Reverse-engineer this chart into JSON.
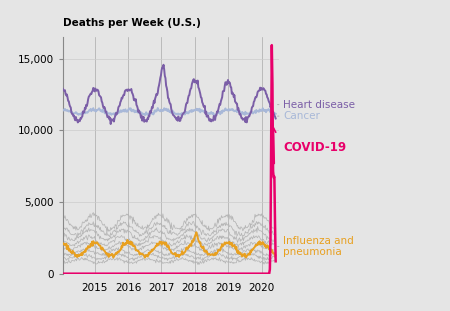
{
  "title": "Deaths per Week (U.S.)",
  "background_color": "#e5e5e5",
  "plot_bg_color": "#e5e5e5",
  "xlim": [
    2014.05,
    2020.52
  ],
  "ylim": [
    0,
    16500
  ],
  "yticks": [
    0,
    5000,
    10000,
    15000
  ],
  "xtick_years": [
    2015,
    2016,
    2017,
    2018,
    2019,
    2020
  ],
  "heart_disease_color": "#7b5ea7",
  "cancer_color": "#a8b8d8",
  "covid_color": "#e8006a",
  "flu_color": "#e8a020",
  "other_color": "#b0b0b0",
  "heart_disease_label": "Heart disease",
  "cancer_label": "Cancer",
  "covid_label": "COVID-19",
  "flu_label": "Influenza and\npneumonia"
}
